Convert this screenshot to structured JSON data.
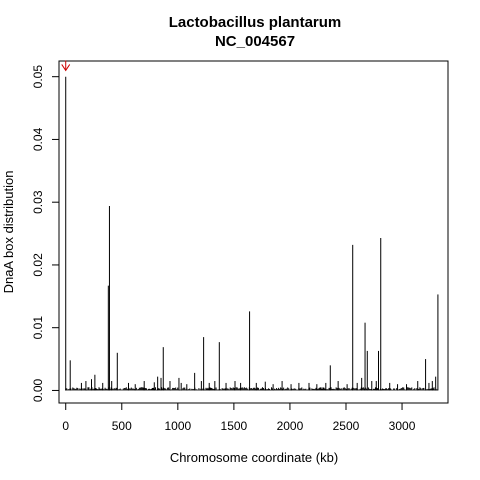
{
  "chart_data": {
    "type": "bar",
    "title": "Lactobacillus plantarum",
    "subtitle": "NC_004567",
    "xlabel": "Chromosome coordinate (kb)",
    "ylabel": "DnaA box distribution",
    "xlim": [
      -60,
      3410
    ],
    "ylim": [
      -0.002,
      0.0525
    ],
    "x_ticks": [
      0,
      500,
      1000,
      1500,
      2000,
      2500,
      3000
    ],
    "x_tick_labels": [
      "0",
      "500",
      "1000",
      "1500",
      "2000",
      "2500",
      "3000"
    ],
    "y_ticks": [
      0,
      0.01,
      0.02,
      0.03,
      0.04,
      0.05
    ],
    "y_tick_labels": [
      "0.00",
      "0.01",
      "0.02",
      "0.03",
      "0.04",
      "0.05"
    ],
    "grid": false,
    "annotation": {
      "type": "arrow",
      "x": 0,
      "y": 0.051,
      "color": "#cc0000"
    },
    "spikes": {
      "x": [
        0,
        40,
        140,
        180,
        230,
        260,
        330,
        380,
        390,
        410,
        460,
        560,
        620,
        700,
        790,
        820,
        850,
        870,
        930,
        1010,
        1030,
        1080,
        1150,
        1210,
        1230,
        1280,
        1330,
        1370,
        1430,
        1510,
        1560,
        1640,
        1700,
        1780,
        1850,
        1930,
        2010,
        2080,
        2170,
        2240,
        2320,
        2360,
        2430,
        2510,
        2560,
        2600,
        2640,
        2670,
        2690,
        2730,
        2770,
        2790,
        2810,
        2890,
        2960,
        3040,
        3140,
        3210,
        3240,
        3270,
        3300,
        3320
      ],
      "values": [
        0.05,
        0.0048,
        0.0012,
        0.0015,
        0.0018,
        0.0025,
        0.0012,
        0.0167,
        0.0294,
        0.0015,
        0.006,
        0.0012,
        0.001,
        0.0015,
        0.0013,
        0.0022,
        0.002,
        0.0069,
        0.0015,
        0.002,
        0.0012,
        0.001,
        0.0028,
        0.0015,
        0.0085,
        0.0012,
        0.0015,
        0.0077,
        0.0012,
        0.0015,
        0.0012,
        0.0126,
        0.0012,
        0.0014,
        0.001,
        0.0015,
        0.001,
        0.0012,
        0.0012,
        0.001,
        0.0012,
        0.004,
        0.0015,
        0.001,
        0.0232,
        0.0012,
        0.002,
        0.0108,
        0.0063,
        0.0015,
        0.0015,
        0.0063,
        0.0243,
        0.0012,
        0.001,
        0.001,
        0.0015,
        0.005,
        0.0012,
        0.0015,
        0.0022,
        0.0153
      ],
      "noise_level": 0.0004
    }
  }
}
